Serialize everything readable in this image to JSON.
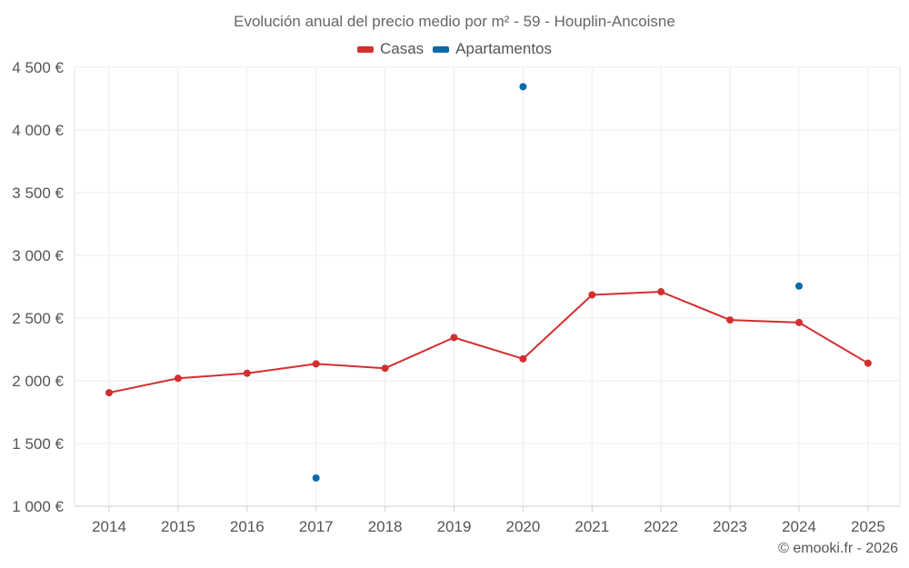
{
  "chart_data": {
    "type": "line",
    "title": "Evolución anual del precio medio por m² - 59 - Houplin-Ancoisne",
    "categories": [
      "2014",
      "2015",
      "2016",
      "2017",
      "2018",
      "2019",
      "2020",
      "2021",
      "2022",
      "2023",
      "2024",
      "2025"
    ],
    "series": [
      {
        "name": "Casas",
        "color": "#d32f2f",
        "values": [
          1905,
          2020,
          2060,
          2135,
          2100,
          2345,
          2175,
          2685,
          2710,
          2485,
          2465,
          2140
        ]
      },
      {
        "name": "Apartamentos",
        "color": "#0d6aa8",
        "values": [
          null,
          null,
          null,
          1225,
          null,
          null,
          4345,
          null,
          null,
          null,
          2755,
          null
        ]
      }
    ],
    "ylim": [
      1000,
      4500
    ],
    "yticks": [
      1000,
      1500,
      2000,
      2500,
      3000,
      3500,
      4000,
      4500
    ],
    "ytick_labels": [
      "1 000 €",
      "1 500 €",
      "2 000 €",
      "2 500 €",
      "3 000 €",
      "3 500 €",
      "4 000 €",
      "4 500 €"
    ],
    "grid": true,
    "legend_position": "top-center"
  },
  "footer": {
    "credit": "© emooki.fr - 2026"
  }
}
